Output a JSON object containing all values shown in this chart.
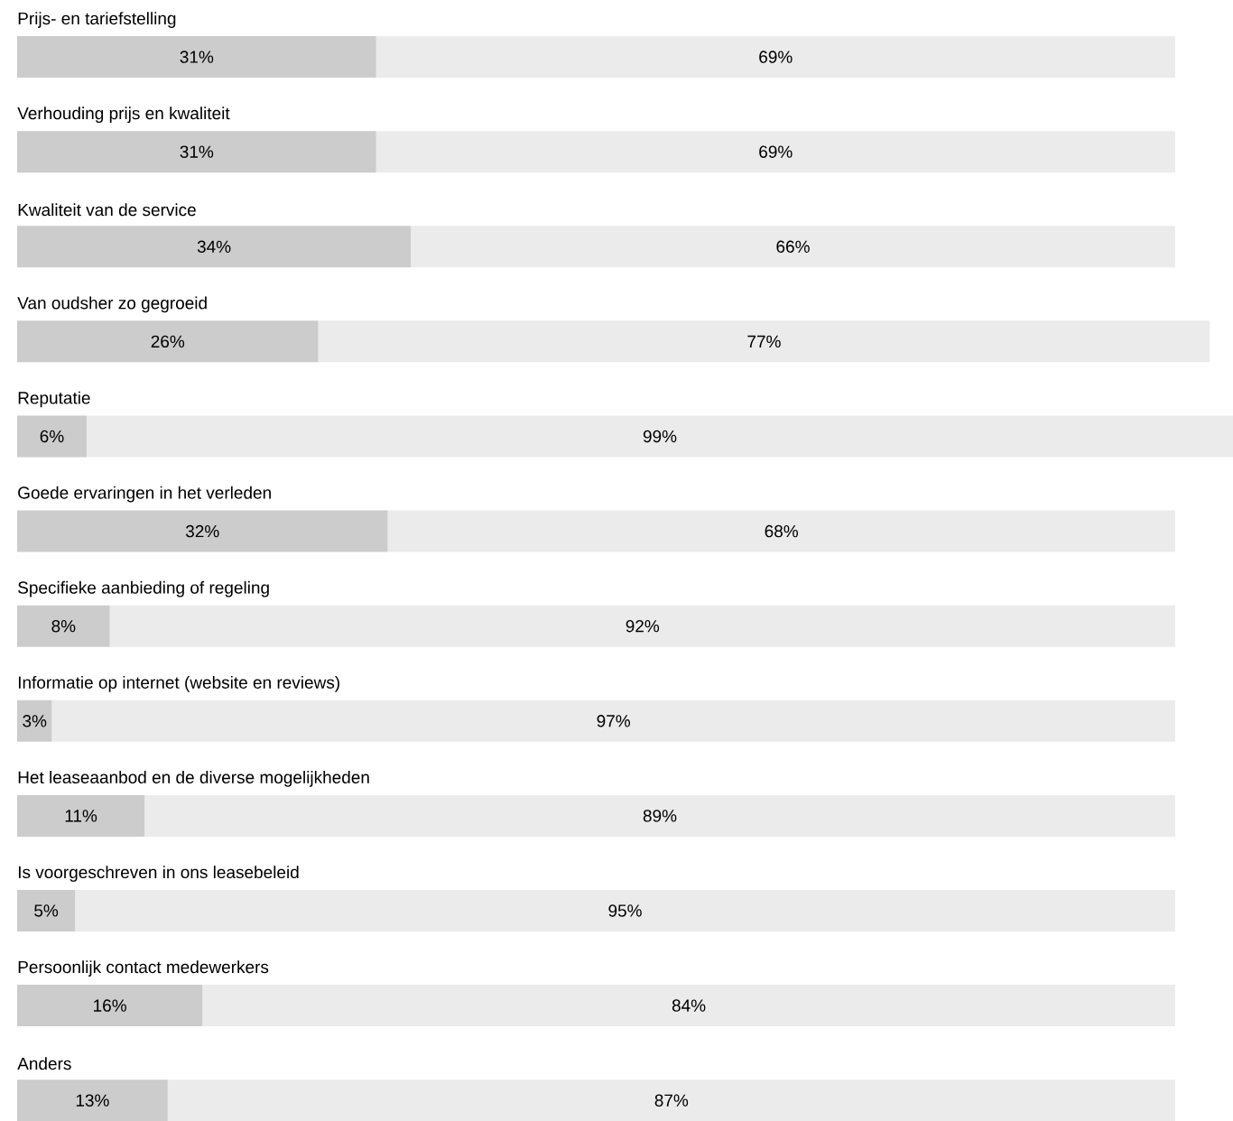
{
  "chart_data": {
    "type": "bar",
    "orientation": "horizontal",
    "stacked": true,
    "categories": [
      "Prijs- en tariefstelling",
      "Verhouding prijs en kwaliteit",
      "Kwaliteit van de service",
      "Van oudsher zo gegroeid",
      "Reputatie",
      "Goede ervaringen in het verleden",
      "Specifieke aanbieding of regeling",
      "Informatie op internet (website en reviews)",
      "Het leaseaanbod en de diverse mogelijkheden",
      "Is voorgeschreven in ons leasebeleid",
      "Persoonlijk contact medewerkers",
      "Anders"
    ],
    "series": [
      {
        "color": "#cccccc",
        "values": [
          31,
          31,
          34,
          26,
          6,
          32,
          8,
          3,
          11,
          5,
          16,
          13
        ],
        "value_labels": [
          "31%",
          "31%",
          "34%",
          "26%",
          "6%",
          "32%",
          "8%",
          "3%",
          "11%",
          "5%",
          "16%",
          "13%"
        ]
      },
      {
        "color": "#ebebeb",
        "values": [
          69,
          69,
          66,
          77,
          99,
          68,
          92,
          97,
          89,
          95,
          84,
          87
        ],
        "value_labels": [
          "69%",
          "69%",
          "66%",
          "77%",
          "99%",
          "68%",
          "92%",
          "97%",
          "89%",
          "95%",
          "84%",
          "87%"
        ]
      }
    ]
  }
}
